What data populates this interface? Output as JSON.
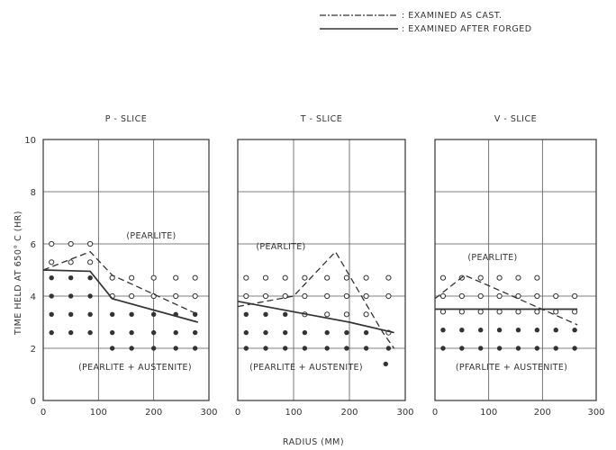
{
  "legend": {
    "cast_label": ": EXAMINED AS CAST.",
    "forged_label": ": EXAMINED AFTER FORGED"
  },
  "y_axis_label": "TIME HELD AT 650° C (HR)",
  "x_axis_label": "RADIUS (MM)",
  "chart_data": [
    {
      "type": "scatter",
      "title": "P - SLICE",
      "xlim": [
        0,
        300
      ],
      "ylim": [
        0,
        10
      ],
      "xticks": [
        "0",
        "100",
        "200",
        "300"
      ],
      "yticks": [
        "0",
        "2",
        "4",
        "6",
        "8",
        "10"
      ],
      "grid": true,
      "region_labels": [
        "(PEARLITE)",
        "(PEARLITE + AUSTENITE)"
      ],
      "series": [
        {
          "name": "EXAMINED AS CAST.",
          "style": "dashed",
          "x": [
            0,
            85,
            125,
            280
          ],
          "y": [
            5.0,
            5.7,
            4.8,
            3.3
          ]
        },
        {
          "name": "EXAMINED AFTER FORGED",
          "style": "solid",
          "x": [
            0,
            85,
            125,
            280
          ],
          "y": [
            5.0,
            4.95,
            3.9,
            3.0
          ]
        }
      ],
      "points": {
        "open": [
          [
            15,
            6
          ],
          [
            50,
            6
          ],
          [
            85,
            6
          ],
          [
            15,
            5.3
          ],
          [
            50,
            5.3
          ],
          [
            85,
            5.3
          ],
          [
            125,
            4.7
          ],
          [
            160,
            4.7
          ],
          [
            200,
            4.7
          ],
          [
            240,
            4.7
          ],
          [
            275,
            4.7
          ],
          [
            125,
            4.0
          ],
          [
            160,
            4.0
          ],
          [
            200,
            4.0
          ],
          [
            240,
            4.0
          ],
          [
            275,
            4.0
          ]
        ],
        "filled": [
          [
            15,
            4.7
          ],
          [
            50,
            4.7
          ],
          [
            85,
            4.7
          ],
          [
            15,
            4.0
          ],
          [
            50,
            4.0
          ],
          [
            85,
            4.0
          ],
          [
            15,
            3.3
          ],
          [
            50,
            3.3
          ],
          [
            85,
            3.3
          ],
          [
            125,
            3.3
          ],
          [
            160,
            3.3
          ],
          [
            200,
            3.3
          ],
          [
            240,
            3.3
          ],
          [
            275,
            3.3
          ],
          [
            15,
            2.6
          ],
          [
            50,
            2.6
          ],
          [
            85,
            2.6
          ],
          [
            125,
            2.6
          ],
          [
            160,
            2.6
          ],
          [
            200,
            2.6
          ],
          [
            240,
            2.6
          ],
          [
            275,
            2.6
          ],
          [
            125,
            2.0
          ],
          [
            160,
            2.0
          ],
          [
            200,
            2.0
          ],
          [
            240,
            2.0
          ],
          [
            275,
            2.0
          ]
        ]
      }
    },
    {
      "type": "scatter",
      "title": "T - SLICE",
      "xlim": [
        0,
        300
      ],
      "ylim": [
        0,
        10
      ],
      "xticks": [
        "0",
        "100",
        "200",
        "300"
      ],
      "yticks": [],
      "grid": true,
      "region_labels": [
        "(PEARLITE)",
        "(PEARLITE + AUSTENITE)"
      ],
      "series": [
        {
          "name": "EXAMINED AS CAST.",
          "style": "dashed",
          "x": [
            0,
            100,
            175,
            260,
            280
          ],
          "y": [
            3.6,
            4.0,
            5.7,
            2.6,
            2.0
          ]
        },
        {
          "name": "EXAMINED AFTER FORGED",
          "style": "solid",
          "x": [
            0,
            100,
            200,
            280
          ],
          "y": [
            3.8,
            3.4,
            3.0,
            2.6
          ]
        }
      ],
      "points": {
        "open": [
          [
            15,
            4.7
          ],
          [
            50,
            4.7
          ],
          [
            85,
            4.7
          ],
          [
            120,
            4.7
          ],
          [
            160,
            4.7
          ],
          [
            195,
            4.7
          ],
          [
            230,
            4.7
          ],
          [
            270,
            4.7
          ],
          [
            15,
            4.0
          ],
          [
            50,
            4.0
          ],
          [
            85,
            4.0
          ],
          [
            120,
            4.0
          ],
          [
            160,
            4.0
          ],
          [
            195,
            4.0
          ],
          [
            230,
            4.0
          ],
          [
            270,
            4.0
          ],
          [
            120,
            3.3
          ],
          [
            160,
            3.3
          ],
          [
            195,
            3.3
          ],
          [
            230,
            3.3
          ],
          [
            270,
            2.6
          ]
        ],
        "filled": [
          [
            15,
            3.3
          ],
          [
            50,
            3.3
          ],
          [
            85,
            3.3
          ],
          [
            15,
            2.6
          ],
          [
            50,
            2.6
          ],
          [
            85,
            2.6
          ],
          [
            120,
            2.6
          ],
          [
            160,
            2.6
          ],
          [
            195,
            2.6
          ],
          [
            230,
            2.6
          ],
          [
            15,
            2.0
          ],
          [
            50,
            2.0
          ],
          [
            85,
            2.0
          ],
          [
            120,
            2.0
          ],
          [
            160,
            2.0
          ],
          [
            195,
            2.0
          ],
          [
            230,
            2.0
          ],
          [
            270,
            2.0
          ],
          [
            265,
            1.4
          ]
        ]
      }
    },
    {
      "type": "scatter",
      "title": "V - SLICE",
      "xlim": [
        0,
        300
      ],
      "ylim": [
        0,
        10
      ],
      "xticks": [
        "0",
        "100",
        "200",
        "300"
      ],
      "yticks": [],
      "grid": true,
      "region_labels": [
        "(PEARLITE)",
        "(PFARLITE + AUSTENITE)"
      ],
      "series": [
        {
          "name": "EXAMINED AS CAST.",
          "style": "dashed",
          "x": [
            0,
            55,
            100,
            265
          ],
          "y": [
            3.9,
            4.8,
            4.4,
            2.9
          ]
        },
        {
          "name": "EXAMINED AFTER FORGED",
          "style": "solid",
          "x": [
            0,
            265
          ],
          "y": [
            3.5,
            3.5
          ]
        }
      ],
      "points": {
        "open": [
          [
            15,
            4.7
          ],
          [
            50,
            4.7
          ],
          [
            85,
            4.7
          ],
          [
            120,
            4.7
          ],
          [
            155,
            4.7
          ],
          [
            190,
            4.7
          ],
          [
            15,
            4.0
          ],
          [
            50,
            4.0
          ],
          [
            85,
            4.0
          ],
          [
            120,
            4.0
          ],
          [
            155,
            4.0
          ],
          [
            190,
            4.0
          ],
          [
            225,
            4.0
          ],
          [
            260,
            4.0
          ],
          [
            15,
            3.4
          ],
          [
            50,
            3.4
          ],
          [
            85,
            3.4
          ],
          [
            120,
            3.4
          ],
          [
            155,
            3.4
          ],
          [
            190,
            3.4
          ],
          [
            225,
            3.4
          ],
          [
            260,
            3.4
          ]
        ],
        "filled": [
          [
            15,
            2.7
          ],
          [
            50,
            2.7
          ],
          [
            85,
            2.7
          ],
          [
            120,
            2.7
          ],
          [
            155,
            2.7
          ],
          [
            190,
            2.7
          ],
          [
            225,
            2.7
          ],
          [
            260,
            2.7
          ],
          [
            15,
            2.0
          ],
          [
            50,
            2.0
          ],
          [
            85,
            2.0
          ],
          [
            120,
            2.0
          ],
          [
            155,
            2.0
          ],
          [
            190,
            2.0
          ],
          [
            225,
            2.0
          ],
          [
            260,
            2.0
          ]
        ]
      }
    }
  ]
}
